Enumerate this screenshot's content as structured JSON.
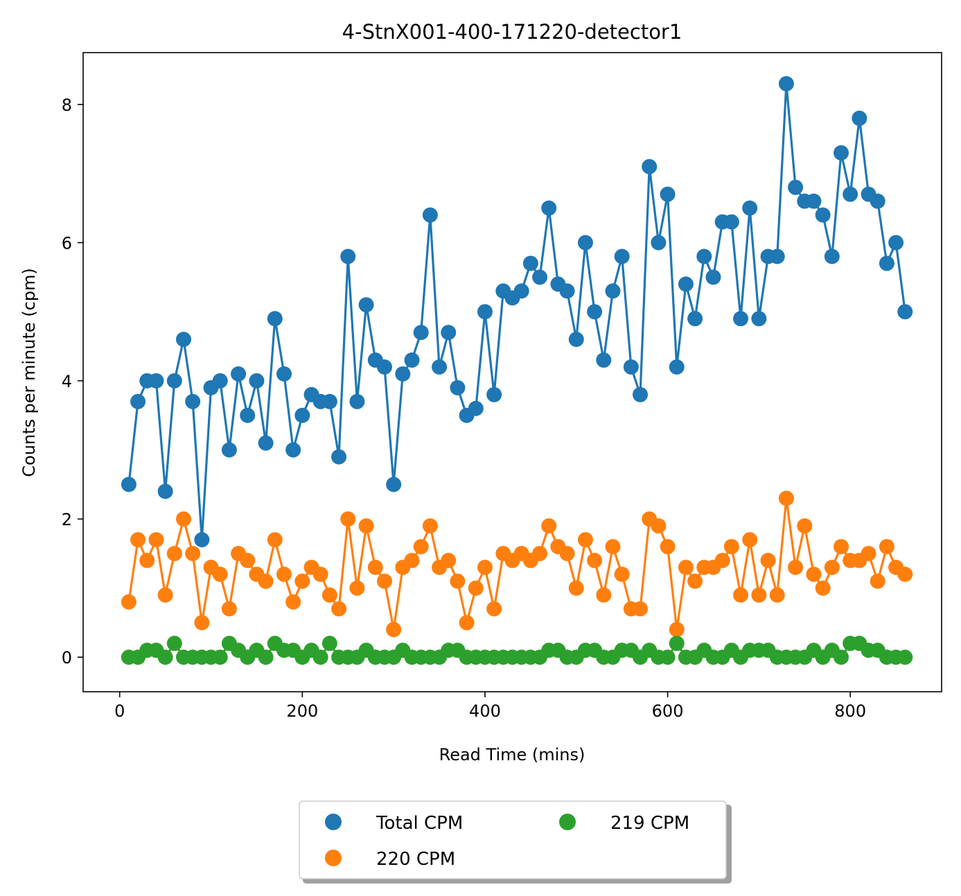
{
  "chart_data": {
    "type": "line",
    "title": "4-StnX001-400-171220-detector1",
    "xlabel": "Read Time (mins)",
    "ylabel": "Counts per minute (cpm)",
    "xlim": [
      -40,
      900
    ],
    "ylim": [
      -0.5,
      8.75
    ],
    "xticks": [
      0,
      200,
      400,
      600,
      800
    ],
    "yticks": [
      0,
      2,
      4,
      6,
      8
    ],
    "legend_position": "bottom-center, below plot",
    "x": [
      10,
      20,
      30,
      40,
      50,
      60,
      70,
      80,
      90,
      100,
      110,
      120,
      130,
      140,
      150,
      160,
      170,
      180,
      190,
      200,
      210,
      220,
      230,
      240,
      250,
      260,
      270,
      280,
      290,
      300,
      310,
      320,
      330,
      340,
      350,
      360,
      370,
      380,
      390,
      400,
      410,
      420,
      430,
      440,
      450,
      460,
      470,
      480,
      490,
      500,
      510,
      520,
      530,
      540,
      550,
      560,
      570,
      580,
      590,
      600,
      610,
      620,
      630,
      640,
      650,
      660,
      670,
      680,
      690,
      700,
      710,
      720,
      730,
      740,
      750,
      760,
      770,
      780,
      790,
      800,
      810,
      820,
      830,
      840,
      850,
      860
    ],
    "series": [
      {
        "name": "Total CPM",
        "color": "#1f77b4",
        "values": [
          2.5,
          3.7,
          4.0,
          4.0,
          2.4,
          4.0,
          4.6,
          3.7,
          1.7,
          3.9,
          4.0,
          3.0,
          4.1,
          3.5,
          4.0,
          3.1,
          4.9,
          4.1,
          3.0,
          3.5,
          3.8,
          3.7,
          3.7,
          2.9,
          5.8,
          3.7,
          5.1,
          4.3,
          4.2,
          2.5,
          4.1,
          4.3,
          4.7,
          6.4,
          4.2,
          4.7,
          3.9,
          3.5,
          3.6,
          5.0,
          3.8,
          5.3,
          5.2,
          5.3,
          5.7,
          5.5,
          6.5,
          5.4,
          5.3,
          4.6,
          6.0,
          5.0,
          4.3,
          5.3,
          5.8,
          4.2,
          3.8,
          7.1,
          6.0,
          6.7,
          4.2,
          5.4,
          4.9,
          5.8,
          5.5,
          6.3,
          6.3,
          4.9,
          6.5,
          4.9,
          5.8,
          5.8,
          8.3,
          6.8,
          6.6,
          6.6,
          6.4,
          5.8,
          7.3,
          6.7,
          7.8,
          6.7,
          6.6,
          5.7,
          6.0,
          5.0
        ]
      },
      {
        "name": "220 CPM",
        "color": "#ff7f0e",
        "values": [
          0.8,
          1.7,
          1.4,
          1.7,
          0.9,
          1.5,
          2.0,
          1.5,
          0.5,
          1.3,
          1.2,
          0.7,
          1.5,
          1.4,
          1.2,
          1.1,
          1.7,
          1.2,
          0.8,
          1.1,
          1.3,
          1.2,
          0.9,
          0.7,
          2.0,
          1.0,
          1.9,
          1.3,
          1.1,
          0.4,
          1.3,
          1.4,
          1.6,
          1.9,
          1.3,
          1.4,
          1.1,
          0.5,
          1.0,
          1.3,
          0.7,
          1.5,
          1.4,
          1.5,
          1.4,
          1.5,
          1.9,
          1.6,
          1.5,
          1.0,
          1.7,
          1.4,
          0.9,
          1.6,
          1.2,
          0.7,
          0.7,
          2.0,
          1.9,
          1.6,
          0.4,
          1.3,
          1.1,
          1.3,
          1.3,
          1.4,
          1.6,
          0.9,
          1.7,
          0.9,
          1.4,
          0.9,
          2.3,
          1.3,
          1.9,
          1.2,
          1.0,
          1.3,
          1.6,
          1.4,
          1.4,
          1.5,
          1.1,
          1.6,
          1.3,
          1.2
        ]
      },
      {
        "name": "219 CPM",
        "color": "#2ca02c",
        "values": [
          0,
          0,
          0.1,
          0.1,
          0,
          0.2,
          0,
          0,
          0,
          0,
          0,
          0.2,
          0.1,
          0,
          0.1,
          0,
          0.2,
          0.1,
          0.1,
          0,
          0.1,
          0,
          0.2,
          0,
          0,
          0,
          0.1,
          0,
          0,
          0,
          0.1,
          0,
          0,
          0,
          0,
          0.1,
          0.1,
          0,
          0,
          0,
          0,
          0,
          0,
          0,
          0,
          0,
          0.1,
          0.1,
          0,
          0,
          0.1,
          0.1,
          0,
          0,
          0.1,
          0.1,
          0,
          0.1,
          0,
          0,
          0.2,
          0,
          0,
          0.1,
          0,
          0,
          0.1,
          0,
          0.1,
          0.1,
          0.1,
          0,
          0,
          0,
          0,
          0.1,
          0,
          0.1,
          0,
          0.2,
          0.2,
          0.1,
          0.1,
          0,
          0,
          0
        ]
      }
    ]
  }
}
